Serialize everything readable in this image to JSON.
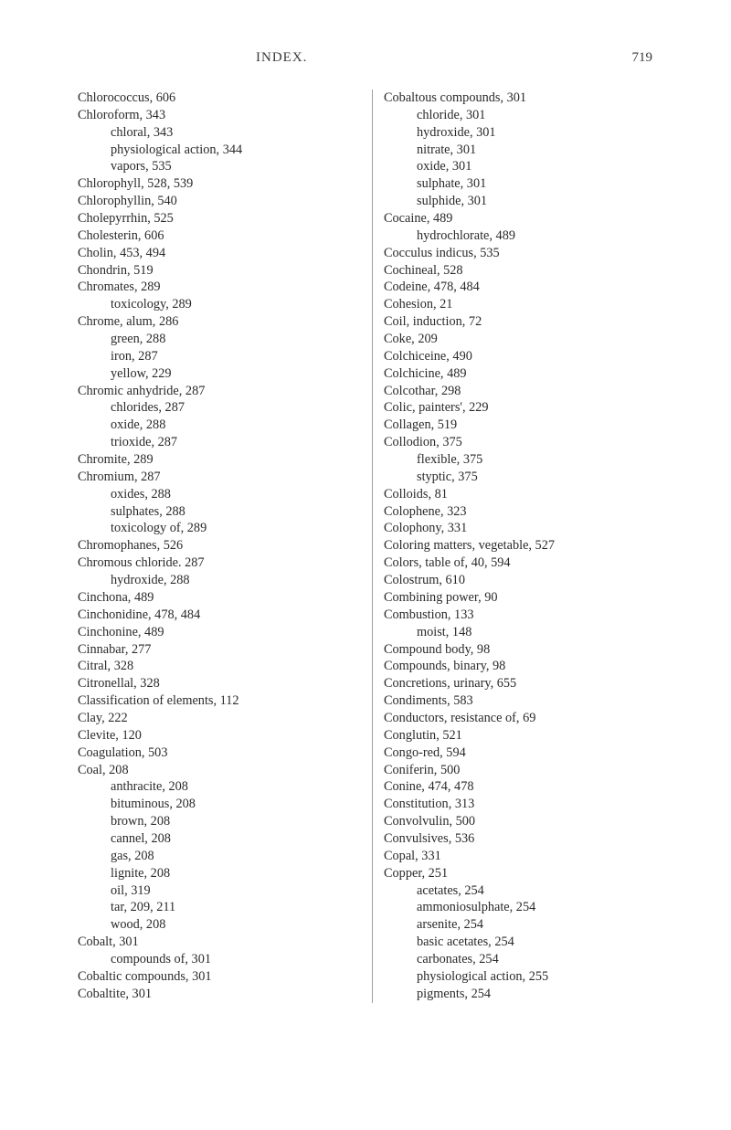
{
  "header": {
    "section": "INDEX.",
    "pageNumber": "719"
  },
  "leftColumn": [
    {
      "indent": 0,
      "text": "Chlorococcus, 606"
    },
    {
      "indent": 0,
      "text": "Chloroform, 343"
    },
    {
      "indent": 1,
      "text": "chloral, 343"
    },
    {
      "indent": 1,
      "text": "physiological action, 344"
    },
    {
      "indent": 1,
      "text": "vapors, 535"
    },
    {
      "indent": 0,
      "text": "Chlorophyll, 528, 539"
    },
    {
      "indent": 0,
      "text": "Chlorophyllin, 540"
    },
    {
      "indent": 0,
      "text": "Cholepyrrhin, 525"
    },
    {
      "indent": 0,
      "text": "Cholesterin, 606"
    },
    {
      "indent": 0,
      "text": "Cholin, 453, 494"
    },
    {
      "indent": 0,
      "text": "Chondrin, 519"
    },
    {
      "indent": 0,
      "text": "Chromates, 289"
    },
    {
      "indent": 1,
      "text": "toxicology, 289"
    },
    {
      "indent": 0,
      "text": "Chrome, alum, 286"
    },
    {
      "indent": 1,
      "text": "green, 288"
    },
    {
      "indent": 1,
      "text": "iron, 287"
    },
    {
      "indent": 1,
      "text": "yellow, 229"
    },
    {
      "indent": 0,
      "text": "Chromic anhydride, 287"
    },
    {
      "indent": 1,
      "text": "chlorides, 287"
    },
    {
      "indent": 1,
      "text": "oxide, 288"
    },
    {
      "indent": 1,
      "text": "trioxide, 287"
    },
    {
      "indent": 0,
      "text": "Chromite, 289"
    },
    {
      "indent": 0,
      "text": "Chromium, 287"
    },
    {
      "indent": 1,
      "text": "oxides, 288"
    },
    {
      "indent": 1,
      "text": "sulphates, 288"
    },
    {
      "indent": 1,
      "text": "toxicology of, 289"
    },
    {
      "indent": 0,
      "text": "Chromophanes, 526"
    },
    {
      "indent": 0,
      "text": "Chromous chloride. 287"
    },
    {
      "indent": 1,
      "text": "hydroxide, 288"
    },
    {
      "indent": 0,
      "text": "Cinchona, 489"
    },
    {
      "indent": 0,
      "text": "Cinchonidine, 478, 484"
    },
    {
      "indent": 0,
      "text": "Cinchonine, 489"
    },
    {
      "indent": 0,
      "text": "Cinnabar, 277"
    },
    {
      "indent": 0,
      "text": "Citral, 328"
    },
    {
      "indent": 0,
      "text": "Citronellal, 328"
    },
    {
      "indent": 0,
      "text": "Classification of elements, 112"
    },
    {
      "indent": 0,
      "text": "Clay, 222"
    },
    {
      "indent": 0,
      "text": "Clevite, 120"
    },
    {
      "indent": 0,
      "text": "Coagulation, 503"
    },
    {
      "indent": 0,
      "text": "Coal, 208"
    },
    {
      "indent": 1,
      "text": "anthracite, 208"
    },
    {
      "indent": 1,
      "text": "bituminous, 208"
    },
    {
      "indent": 1,
      "text": "brown, 208"
    },
    {
      "indent": 1,
      "text": "cannel, 208"
    },
    {
      "indent": 1,
      "text": "gas, 208"
    },
    {
      "indent": 1,
      "text": "lignite, 208"
    },
    {
      "indent": 1,
      "text": "oil, 319"
    },
    {
      "indent": 1,
      "text": "tar, 209, 211"
    },
    {
      "indent": 1,
      "text": "wood, 208"
    },
    {
      "indent": 0,
      "text": "Cobalt, 301"
    },
    {
      "indent": 1,
      "text": "compounds of, 301"
    },
    {
      "indent": 0,
      "text": "Cobaltic compounds, 301"
    },
    {
      "indent": 0,
      "text": "Cobaltite, 301"
    }
  ],
  "rightColumn": [
    {
      "indent": 0,
      "text": "Cobaltous compounds, 301"
    },
    {
      "indent": 1,
      "text": "chloride, 301"
    },
    {
      "indent": 1,
      "text": "hydroxide, 301"
    },
    {
      "indent": 1,
      "text": "nitrate, 301"
    },
    {
      "indent": 1,
      "text": "oxide, 301"
    },
    {
      "indent": 1,
      "text": "sulphate, 301"
    },
    {
      "indent": 1,
      "text": "sulphide, 301"
    },
    {
      "indent": 0,
      "text": "Cocaine, 489"
    },
    {
      "indent": 1,
      "text": "hydrochlorate, 489"
    },
    {
      "indent": 0,
      "text": "Cocculus indicus, 535"
    },
    {
      "indent": 0,
      "text": "Cochineal, 528"
    },
    {
      "indent": 0,
      "text": "Codeine, 478, 484"
    },
    {
      "indent": 0,
      "text": "Cohesion, 21"
    },
    {
      "indent": 0,
      "text": "Coil, induction, 72"
    },
    {
      "indent": 0,
      "text": "Coke, 209"
    },
    {
      "indent": 0,
      "text": "Colchiceine, 490"
    },
    {
      "indent": 0,
      "text": "Colchicine, 489"
    },
    {
      "indent": 0,
      "text": "Colcothar, 298"
    },
    {
      "indent": 0,
      "text": "Colic, painters', 229"
    },
    {
      "indent": 0,
      "text": "Collagen, 519"
    },
    {
      "indent": 0,
      "text": "Collodion, 375"
    },
    {
      "indent": 1,
      "text": "flexible, 375"
    },
    {
      "indent": 1,
      "text": "styptic, 375"
    },
    {
      "indent": 0,
      "text": "Colloids, 81"
    },
    {
      "indent": 0,
      "text": "Colophene, 323"
    },
    {
      "indent": 0,
      "text": "Colophony, 331"
    },
    {
      "indent": 0,
      "text": "Coloring matters, vegetable, 527"
    },
    {
      "indent": 0,
      "text": "Colors, table of, 40, 594"
    },
    {
      "indent": 0,
      "text": "Colostrum, 610"
    },
    {
      "indent": 0,
      "text": "Combining power, 90"
    },
    {
      "indent": 0,
      "text": "Combustion, 133"
    },
    {
      "indent": 1,
      "text": "moist, 148"
    },
    {
      "indent": 0,
      "text": "Compound body, 98"
    },
    {
      "indent": 0,
      "text": "Compounds, binary, 98"
    },
    {
      "indent": 0,
      "text": "Concretions, urinary, 655"
    },
    {
      "indent": 0,
      "text": "Condiments, 583"
    },
    {
      "indent": 0,
      "text": "Conductors, resistance of, 69"
    },
    {
      "indent": 0,
      "text": "Conglutin, 521"
    },
    {
      "indent": 0,
      "text": "Congo-red, 594"
    },
    {
      "indent": 0,
      "text": "Coniferin, 500"
    },
    {
      "indent": 0,
      "text": "Conine, 474, 478"
    },
    {
      "indent": 0,
      "text": "Constitution, 313"
    },
    {
      "indent": 0,
      "text": "Convolvulin, 500"
    },
    {
      "indent": 0,
      "text": "Convulsives, 536"
    },
    {
      "indent": 0,
      "text": "Copal, 331"
    },
    {
      "indent": 0,
      "text": "Copper, 251"
    },
    {
      "indent": 1,
      "text": "acetates, 254"
    },
    {
      "indent": 1,
      "text": "ammoniosulphate, 254"
    },
    {
      "indent": 1,
      "text": "arsenite, 254"
    },
    {
      "indent": 1,
      "text": "basic acetates, 254"
    },
    {
      "indent": 1,
      "text": "carbonates, 254"
    },
    {
      "indent": 1,
      "text": "physiological action, 255"
    },
    {
      "indent": 1,
      "text": "pigments, 254"
    }
  ]
}
